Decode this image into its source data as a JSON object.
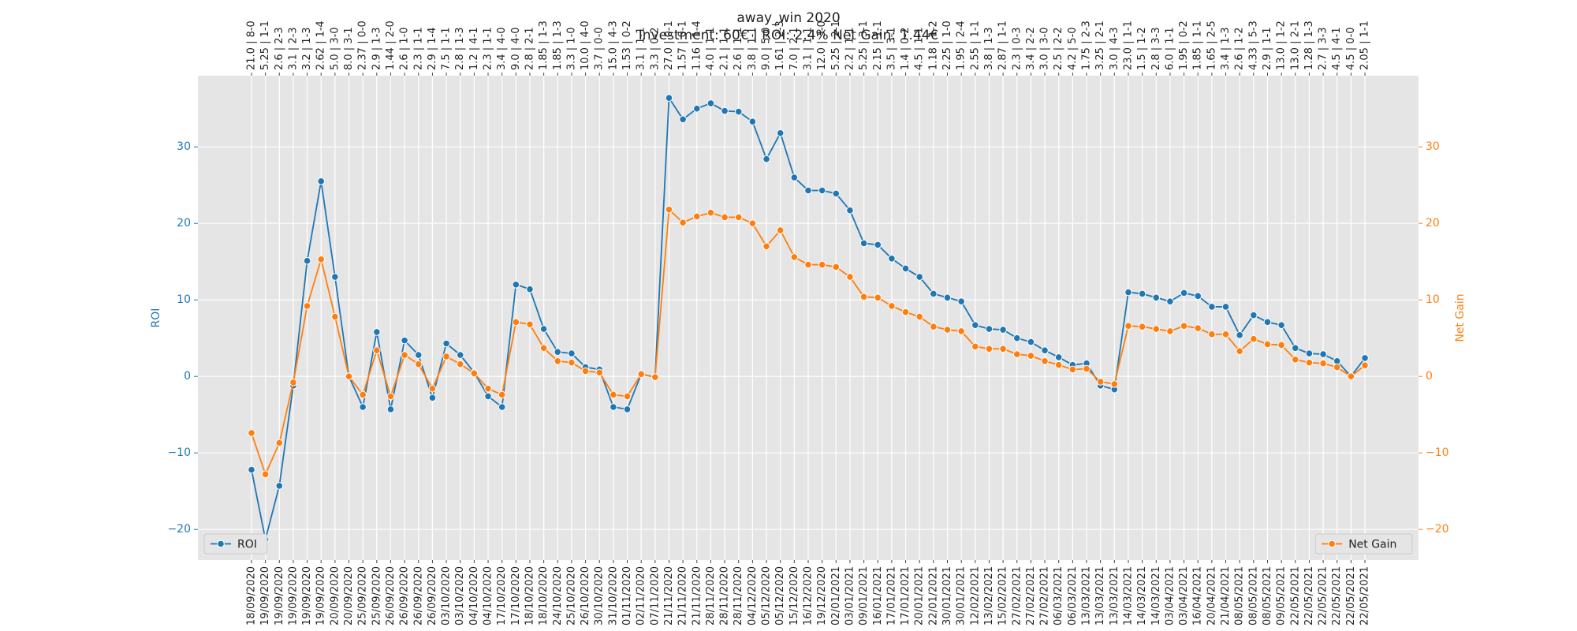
{
  "chart_data": {
    "type": "line",
    "title": "away_win 2020",
    "subtitle": "Investment: 60€ | ROI: 2.4% Net Gain: 1.44€",
    "ylabel": "ROI",
    "y2label": "Net Gain",
    "categories": [
      "18/09/2020",
      "19/09/2020",
      "19/09/2020",
      "19/09/2020",
      "19/09/2020",
      "19/09/2020",
      "20/09/2020",
      "20/09/2020",
      "25/09/2020",
      "25/09/2020",
      "26/09/2020",
      "26/09/2020",
      "26/09/2020",
      "26/09/2020",
      "03/10/2020",
      "03/10/2020",
      "04/10/2020",
      "04/10/2020",
      "17/10/2020",
      "17/10/2020",
      "18/10/2020",
      "18/10/2020",
      "24/10/2020",
      "25/10/2020",
      "26/10/2020",
      "30/10/2020",
      "31/10/2020",
      "01/11/2020",
      "02/11/2020",
      "07/11/2020",
      "21/11/2020",
      "21/11/2020",
      "21/11/2020",
      "28/11/2020",
      "28/11/2020",
      "28/11/2020",
      "04/12/2020",
      "05/12/2020",
      "05/12/2020",
      "15/12/2020",
      "16/12/2020",
      "19/12/2020",
      "02/01/2021",
      "03/01/2021",
      "09/01/2021",
      "16/01/2021",
      "17/01/2021",
      "17/01/2021",
      "20/01/2021",
      "22/01/2021",
      "30/01/2021",
      "30/01/2021",
      "12/02/2021",
      "13/02/2021",
      "15/02/2021",
      "27/02/2021",
      "27/02/2021",
      "27/02/2021",
      "06/03/2021",
      "06/03/2021",
      "13/03/2021",
      "13/03/2021",
      "13/03/2021",
      "14/03/2021",
      "14/03/2021",
      "14/03/2021",
      "03/04/2021",
      "03/04/2021",
      "16/04/2021",
      "20/04/2021",
      "21/04/2021",
      "08/05/2021",
      "08/05/2021",
      "08/05/2021",
      "09/05/2021",
      "22/05/2021",
      "22/05/2021",
      "22/05/2021",
      "22/05/2021",
      "22/05/2021",
      "22/05/2021"
    ],
    "top_labels": [
      "21.0 | 8-0",
      "5.25 | 1-1",
      "2.6 | 2-3",
      "3.1 | 2-3",
      "3.2 | 1-3",
      "2.62 | 1-4",
      "5.0 | 3-0",
      "8.0 | 3-1",
      "2.37 | 0-0",
      "2.9 | 1-3",
      "1.44 | 2-0",
      "2.6 | 1-0",
      "2.3 | 1-1",
      "2.9 | 1-4",
      "7.5 | 1-1",
      "2.8 | 1-3",
      "1.2 | 4-1",
      "2.3 | 1-1",
      "3.4 | 4-0",
      "9.0 | 4-0",
      "2.8 | 2-1",
      "1.85 | 1-3",
      "1.85 | 1-3",
      "3.3 | 1-0",
      "10.0 | 4-0",
      "3.7 | 0-0",
      "15.0 | 4-3",
      "1.53 | 0-2",
      "3.1 | 1-1",
      "3.3 | 0-2",
      "27.0 | 0-1",
      "1.57 | 0-1",
      "1.16 | 1-4",
      "4.0 | 1-1",
      "2.1 | 1-1",
      "2.6 | 1-1",
      "3.8 | 1-1",
      "9.0 | 5-0",
      "1.61 | 2-3",
      "7.0 | 2-1",
      "3.1 | 1-1",
      "12.0 | 3-0",
      "5.25 | 2-1",
      "2.2 | 1-1",
      "5.25 | 3-1",
      "2.15 | 1-1",
      "3.5 | 3-1",
      "1.4 | 0-2",
      "4.5 | 1-1",
      "1.18 | 1-2",
      "2.25 | 1-0",
      "1.95 | 2-4",
      "2.55 | 1-1",
      "3.8 | 1-3",
      "2.87 | 1-1",
      "2.3 | 0-3",
      "3.4 | 2-2",
      "3.0 | 3-0",
      "2.5 | 2-2",
      "4.2 | 5-0",
      "1.75 | 2-3",
      "3.25 | 2-1",
      "3.0 | 4-3",
      "23.0 | 1-1",
      "1.5 | 1-2",
      "2.8 | 3-3",
      "6.0 | 1-1",
      "1.95 | 0-2",
      "1.85 | 1-1",
      "1.65 | 2-5",
      "3.4 | 1-3",
      "2.6 | 1-2",
      "4.33 | 5-3",
      "2.9 | 1-1",
      "13.0 | 1-2",
      "13.0 | 2-1",
      "1.28 | 1-3",
      "2.7 | 3-3",
      "4.5 | 4-1",
      "4.5 | 0-0",
      "2.05 | 1-1"
    ],
    "series": [
      {
        "name": "ROI",
        "color": "#1f77b4",
        "axis": "y",
        "legend": "lower left",
        "values": [
          -12.2,
          -21.3,
          -14.3,
          -1.2,
          15.1,
          25.5,
          13.0,
          0,
          -4.0,
          5.8,
          -4.3,
          4.7,
          2.8,
          -2.8,
          4.3,
          2.8,
          0.5,
          -2.6,
          -4.0,
          12.0,
          11.4,
          6.2,
          3.2,
          3.0,
          1.2,
          0.9,
          -4.0,
          -4.3,
          0.3,
          -0.1,
          36.4,
          33.6,
          35.0,
          35.7,
          34.7,
          34.6,
          33.3,
          28.4,
          31.8,
          26.0,
          24.3,
          24.3,
          23.9,
          21.7,
          17.4,
          17.2,
          15.4,
          14.1,
          13.0,
          10.8,
          10.3,
          9.8,
          6.7,
          6.2,
          6.1,
          5.0,
          4.5,
          3.4,
          2.5,
          1.5,
          1.7,
          -1.2,
          -1.7,
          11.0,
          10.8,
          10.3,
          9.8,
          10.9,
          10.5,
          9.1,
          9.1,
          5.4,
          8.0,
          7.1,
          6.7,
          3.7,
          3.0,
          2.9,
          2.0,
          0,
          2.4
        ]
      },
      {
        "name": "Net Gain",
        "color": "#ff7f0e",
        "axis": "y2",
        "legend": "lower right",
        "values": [
          -7.4,
          -12.8,
          -8.7,
          -0.8,
          9.2,
          15.3,
          7.8,
          0,
          -2.4,
          3.4,
          -2.6,
          2.8,
          1.6,
          -1.6,
          2.6,
          1.6,
          0.4,
          -1.6,
          -2.4,
          7.1,
          6.8,
          3.7,
          2.0,
          1.8,
          0.7,
          0.5,
          -2.4,
          -2.6,
          0.3,
          -0.1,
          21.8,
          20.1,
          20.9,
          21.4,
          20.8,
          20.8,
          20.0,
          17.0,
          19.1,
          15.6,
          14.6,
          14.6,
          14.3,
          13.0,
          10.4,
          10.3,
          9.2,
          8.4,
          7.8,
          6.5,
          6.1,
          5.9,
          3.9,
          3.6,
          3.6,
          2.9,
          2.7,
          2.0,
          1.5,
          0.9,
          1.0,
          -0.7,
          -1.0,
          6.6,
          6.5,
          6.2,
          5.9,
          6.6,
          6.3,
          5.5,
          5.5,
          3.3,
          4.9,
          4.2,
          4.1,
          2.2,
          1.8,
          1.7,
          1.2,
          0,
          1.44
        ]
      }
    ],
    "ylim": [
      -24,
      39.3
    ],
    "yticks": [
      {
        "value": -20,
        "label": "−20"
      },
      {
        "value": -10,
        "label": "−10"
      },
      0,
      10,
      20,
      30
    ],
    "y2lim": [
      -24,
      39.3
    ],
    "y2ticks": [
      {
        "value": -20,
        "label": "−20"
      },
      {
        "value": -10,
        "label": "−10"
      },
      0,
      10,
      20,
      30
    ],
    "grid": true
  }
}
